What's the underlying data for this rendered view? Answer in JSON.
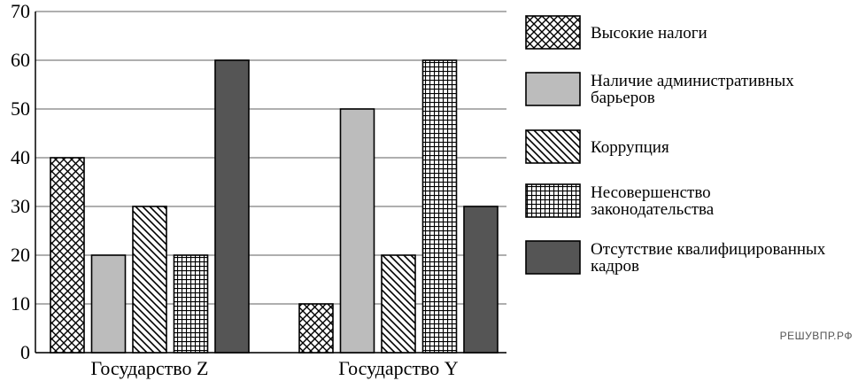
{
  "chart_data": {
    "type": "bar",
    "title": "",
    "xlabel": "",
    "ylabel": "",
    "ylim": [
      0,
      70
    ],
    "yticks": [
      0,
      10,
      20,
      30,
      40,
      50,
      60,
      70
    ],
    "grid": true,
    "legend_position": "right",
    "categories": [
      "Государство Z",
      "Государство Y"
    ],
    "series": [
      {
        "name": "Высокие налоги",
        "pattern": "crosshatch",
        "color": "#000000",
        "values": [
          40,
          10
        ]
      },
      {
        "name": "Наличие административных барьеров",
        "pattern": "solid",
        "color": "#bcbcbc",
        "values": [
          20,
          50
        ]
      },
      {
        "name": "Коррупция",
        "pattern": "diagonal",
        "color": "#000000",
        "values": [
          30,
          20
        ]
      },
      {
        "name": "Несовершенство законодательства",
        "pattern": "grid",
        "color": "#000000",
        "values": [
          20,
          60
        ]
      },
      {
        "name": "Отсутствие квалифицированных кадров",
        "pattern": "solid",
        "color": "#555555",
        "values": [
          60,
          30
        ]
      }
    ]
  },
  "watermark": "РЕШУВПР.РФ"
}
